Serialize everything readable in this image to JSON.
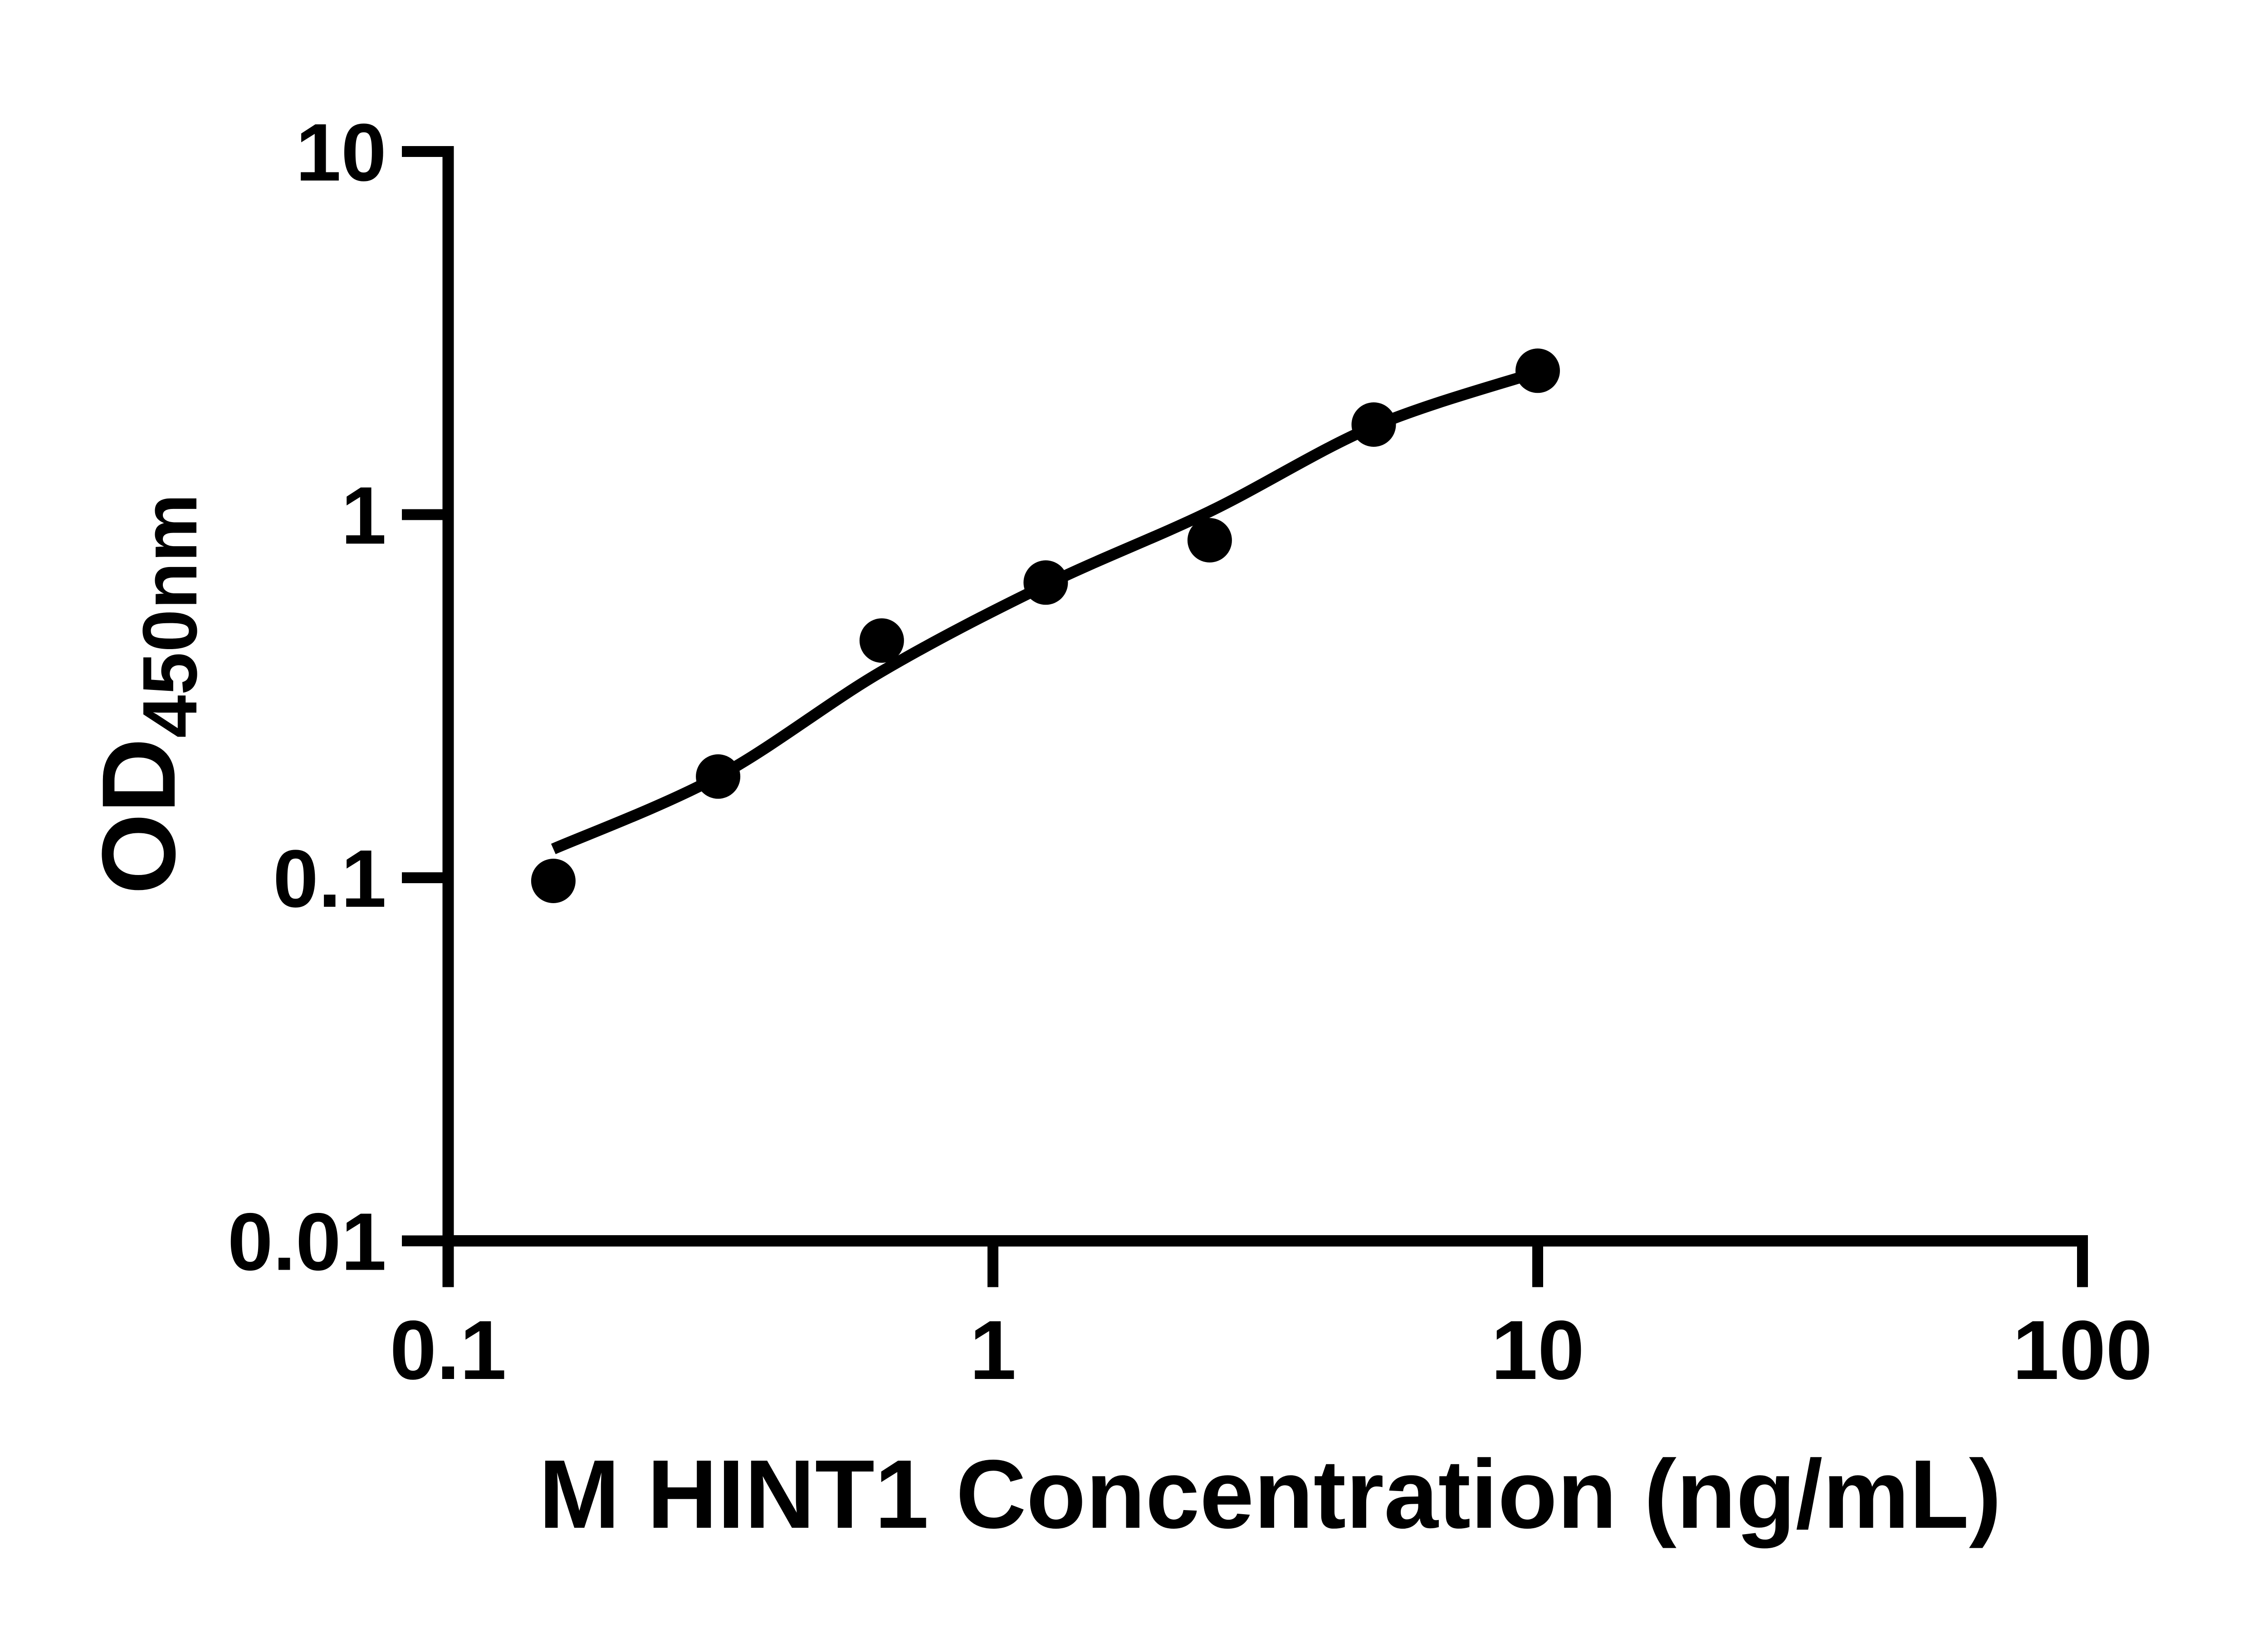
{
  "figure": {
    "background_color": "#ffffff",
    "ink_color": "#000000"
  },
  "chart_data": {
    "type": "scatter",
    "title": "M HINT1 Concentration (ng/mL)",
    "title_position": "below-x-axis",
    "ylabel_main": "OD",
    "ylabel_sub": "450nm",
    "x_scale": "log10",
    "y_scale": "log10",
    "xlim": [
      0.1,
      100
    ],
    "ylim": [
      0.01,
      10
    ],
    "grid": false,
    "legend": false,
    "x_ticks": {
      "values": [
        0.1,
        1,
        10,
        100
      ],
      "labels": [
        "0.1",
        "1",
        "10",
        "100"
      ]
    },
    "y_ticks": {
      "values": [
        10,
        1,
        0.1,
        0.01
      ],
      "labels": [
        "10",
        "1",
        "0.1",
        "0.01"
      ]
    },
    "series": [
      {
        "name": "standard-points",
        "kind": "scatter",
        "marker": "filled-circle",
        "color": "#000000",
        "x": [
          0.156,
          0.313,
          0.625,
          1.25,
          2.5,
          5,
          10
        ],
        "y": [
          0.098,
          0.19,
          0.45,
          0.65,
          0.85,
          1.77,
          2.49
        ]
      },
      {
        "name": "fit-curve",
        "kind": "smooth-line",
        "color": "#000000",
        "x": [
          0.156,
          0.313,
          0.625,
          1.25,
          2.5,
          5,
          10
        ],
        "y": [
          0.12,
          0.19,
          0.37,
          0.64,
          1.02,
          1.75,
          2.47
        ]
      }
    ]
  }
}
